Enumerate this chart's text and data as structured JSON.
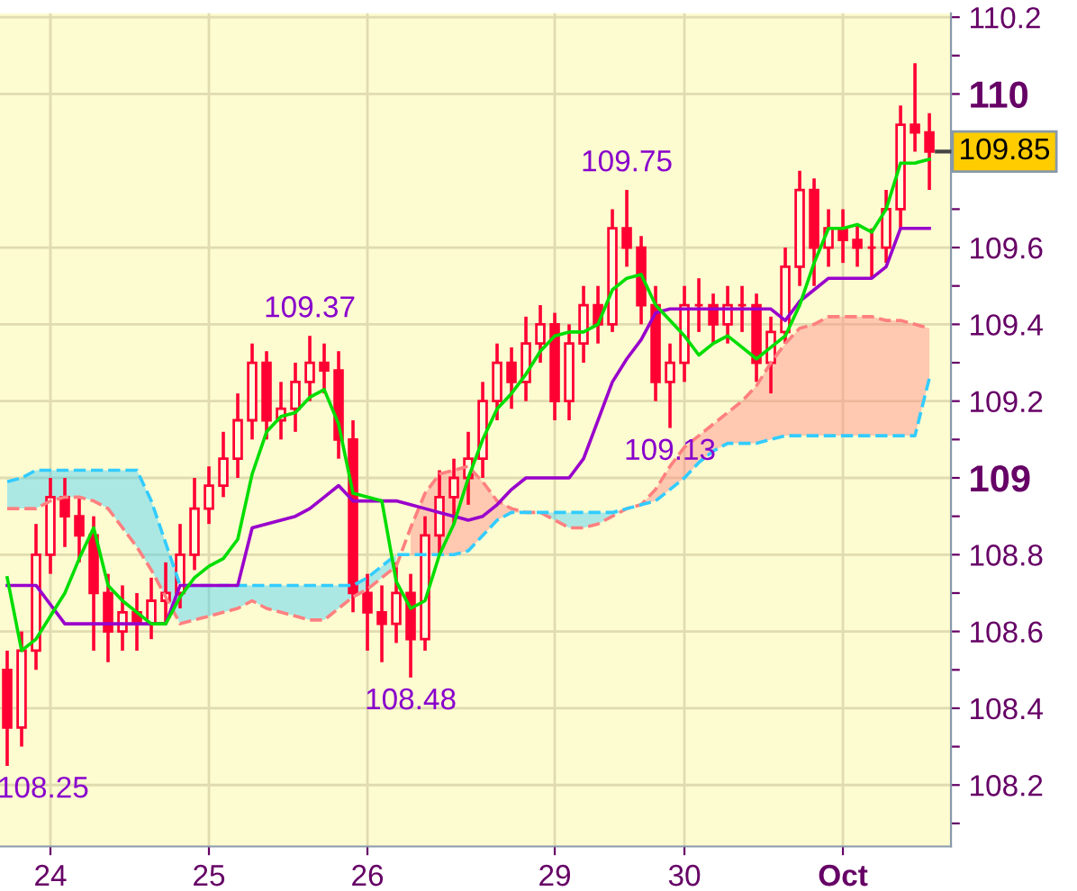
{
  "chart_data": {
    "type": "candlestick",
    "categories": [
      null,
      null,
      null,
      "24",
      null,
      null,
      null,
      null,
      null,
      null,
      null,
      null,
      null,
      null,
      "25",
      null,
      null,
      null,
      null,
      null,
      null,
      null,
      null,
      null,
      null,
      "26",
      null,
      null,
      null,
      null,
      null,
      null,
      null,
      null,
      null,
      null,
      null,
      null,
      "29",
      null,
      null,
      null,
      null,
      null,
      null,
      null,
      null,
      "30",
      null,
      null,
      null,
      null,
      null,
      null,
      null,
      null,
      null,
      null,
      "Oct",
      null,
      null,
      null,
      null,
      null,
      null
    ],
    "ylim": [
      108.04,
      110.21
    ],
    "yticks": [
      {
        "value": 108.1,
        "label": null
      },
      108.2,
      {
        "value": 108.3,
        "label": null
      },
      108.4,
      {
        "value": 108.5,
        "label": null
      },
      108.6,
      {
        "value": 108.7,
        "label": null
      },
      108.8,
      {
        "value": 108.9,
        "label": null
      },
      109,
      {
        "value": 109.1,
        "label": null
      },
      109.2,
      {
        "value": 109.3,
        "label": null
      },
      109.4,
      {
        "value": 109.5,
        "label": null
      },
      109.6,
      {
        "value": 109.7,
        "label": null
      },
      {
        "value": 109.8,
        "label": null
      },
      {
        "value": 109.9,
        "label": null
      },
      110,
      {
        "value": 110.1,
        "label": null
      },
      110.2
    ],
    "grid": true,
    "series": [
      {
        "type": "line",
        "color": "#ff8080",
        "line_style": "dashed",
        "upper": [
          null,
          null,
          null,
          null,
          null,
          null,
          null,
          null,
          null,
          null,
          null,
          null,
          null,
          null,
          null,
          null,
          null,
          null,
          null,
          null,
          null,
          null,
          null,
          null,
          null,
          null,
          null,
          null,
          108.87,
          108.96,
          109.01,
          109.02,
          109.03,
          108.99,
          108.94,
          108.92,
          108.91,
          108.91,
          null,
          null,
          null,
          null,
          null,
          108.92,
          108.93,
          108.97,
          109.03,
          109.08,
          109.11,
          109.14,
          109.17,
          109.2,
          109.24,
          109.3,
          109.35,
          109.39,
          109.4,
          109.42,
          109.42,
          109.42,
          109.42,
          109.41,
          109.41,
          109.4,
          109.39
        ],
        "lower": [
          null,
          null,
          null,
          null,
          null,
          null,
          null,
          null,
          null,
          null,
          null,
          null,
          null,
          null,
          null,
          null,
          null,
          null,
          null,
          null,
          null,
          null,
          null,
          null,
          null,
          null,
          null,
          null,
          108.8,
          108.8,
          108.8,
          108.8,
          108.81,
          108.85,
          108.89,
          108.91,
          108.91,
          108.91,
          null,
          null,
          null,
          null,
          null,
          108.92,
          108.93,
          108.94,
          108.97,
          109.0,
          109.04,
          109.07,
          109.09,
          109.09,
          109.09,
          109.1,
          109.11,
          109.11,
          109.11,
          109.11,
          109.11,
          109.11,
          109.11,
          109.11,
          109.11,
          109.11,
          109.26
        ],
        "values": [
          108.92,
          108.92,
          108.92,
          108.94,
          108.95,
          108.95,
          108.94,
          108.92,
          108.87,
          108.82,
          108.76,
          108.69,
          108.62,
          108.63,
          108.64,
          108.65,
          108.66,
          108.68,
          108.66,
          108.65,
          108.64,
          108.63,
          108.63,
          108.66,
          108.69,
          108.71,
          108.74,
          108.77,
          108.87,
          108.96,
          109.01,
          109.02,
          109.03,
          108.99,
          108.94,
          108.92,
          108.91,
          108.91,
          108.89,
          108.87,
          108.87,
          108.88,
          108.9,
          108.92,
          108.93,
          108.97,
          109.03,
          109.08,
          109.11,
          109.14,
          109.17,
          109.2,
          109.24,
          109.3,
          109.35,
          109.39,
          109.4,
          109.42,
          109.42,
          109.42,
          109.42,
          109.41,
          109.41,
          109.4,
          109.39
        ]
      },
      {
        "type": "line",
        "color": "#33ccff",
        "line_style": "dashed",
        "upper": [
          108.99,
          109.0,
          109.02,
          109.02,
          109.02,
          109.02,
          109.02,
          109.02,
          109.02,
          109.02,
          108.94,
          108.83,
          108.72,
          108.72,
          108.72,
          108.72,
          108.72,
          108.72,
          108.72,
          108.72,
          108.72,
          108.72,
          108.72,
          108.72,
          108.72,
          108.74,
          108.77,
          108.8,
          null,
          null,
          null,
          null,
          null,
          null,
          null,
          null,
          108.91,
          108.91,
          108.91,
          108.91,
          108.91,
          108.91,
          108.91,
          108.92,
          108.93,
          null,
          null,
          null,
          null,
          null,
          null,
          null,
          null,
          null,
          null,
          null,
          null,
          null,
          null,
          null,
          null,
          null,
          null,
          null,
          null
        ],
        "lower": [
          108.92,
          108.92,
          108.92,
          108.94,
          108.95,
          108.95,
          108.94,
          108.92,
          108.87,
          108.82,
          108.76,
          108.69,
          108.62,
          108.63,
          108.64,
          108.65,
          108.66,
          108.68,
          108.66,
          108.65,
          108.64,
          108.63,
          108.63,
          108.66,
          108.69,
          108.71,
          108.74,
          108.77,
          null,
          null,
          null,
          null,
          null,
          null,
          null,
          null,
          108.91,
          108.91,
          108.89,
          108.87,
          108.87,
          108.88,
          108.9,
          108.92,
          108.93,
          null,
          null,
          null,
          null,
          null,
          null,
          null,
          null,
          null,
          null,
          null,
          null,
          null,
          null,
          null,
          null,
          null,
          null,
          null,
          null
        ],
        "values": [
          108.99,
          109.0,
          109.02,
          109.02,
          109.02,
          109.02,
          109.02,
          109.02,
          109.02,
          109.02,
          108.94,
          108.83,
          108.72,
          108.72,
          108.72,
          108.72,
          108.72,
          108.72,
          108.72,
          108.72,
          108.72,
          108.72,
          108.72,
          108.72,
          108.72,
          108.74,
          108.77,
          108.8,
          108.8,
          108.8,
          108.8,
          108.8,
          108.81,
          108.85,
          108.89,
          108.91,
          108.91,
          108.91,
          108.91,
          108.91,
          108.91,
          108.91,
          108.91,
          108.92,
          108.93,
          108.94,
          108.97,
          109.0,
          109.04,
          109.07,
          109.09,
          109.09,
          109.09,
          109.1,
          109.11,
          109.11,
          109.11,
          109.11,
          109.11,
          109.11,
          109.11,
          109.11,
          109.11,
          109.11,
          109.26
        ]
      },
      {
        "type": "line",
        "color": "#9900cc",
        "line_style": "solid",
        "values": [
          108.72,
          108.72,
          108.72,
          108.67,
          108.62,
          108.62,
          108.62,
          108.62,
          108.62,
          108.62,
          108.62,
          108.62,
          108.72,
          108.72,
          108.72,
          108.72,
          108.72,
          108.87,
          108.88,
          108.89,
          108.9,
          108.92,
          108.95,
          108.98,
          108.94,
          108.94,
          108.94,
          108.94,
          108.93,
          108.92,
          108.91,
          108.9,
          108.89,
          108.9,
          108.93,
          108.97,
          109.0,
          109.0,
          109.0,
          109.0,
          109.05,
          109.15,
          109.25,
          109.31,
          109.36,
          109.43,
          109.44,
          109.44,
          109.44,
          109.44,
          109.44,
          109.44,
          109.44,
          109.44,
          109.41,
          109.46,
          109.49,
          109.52,
          109.52,
          109.52,
          109.52,
          109.55,
          109.65,
          109.65,
          109.65
        ]
      },
      {
        "type": "line",
        "color": "#00dd00",
        "line_style": "solid",
        "values": [
          108.74,
          108.55,
          108.58,
          108.64,
          108.7,
          108.79,
          108.87,
          108.72,
          108.68,
          108.65,
          108.62,
          108.62,
          108.69,
          108.74,
          108.77,
          108.79,
          108.84,
          109.01,
          109.12,
          109.16,
          109.17,
          109.21,
          109.23,
          109.14,
          108.96,
          108.95,
          108.94,
          108.73,
          108.66,
          108.68,
          108.8,
          108.88,
          109.0,
          109.1,
          109.18,
          109.22,
          109.27,
          109.33,
          109.37,
          109.38,
          109.38,
          109.4,
          109.49,
          109.52,
          109.53,
          109.45,
          109.41,
          109.37,
          109.32,
          109.35,
          109.37,
          109.34,
          109.31,
          109.34,
          109.37,
          109.45,
          109.56,
          109.65,
          109.65,
          109.66,
          109.64,
          109.7,
          109.82,
          109.82,
          109.83
        ]
      },
      {
        "color": "#ff0033",
        "ohlc": [
          [
            108.5,
            108.55,
            108.25,
            108.35
          ],
          [
            108.35,
            108.6,
            108.3,
            108.55
          ],
          [
            108.55,
            108.88,
            108.5,
            108.8
          ],
          [
            108.8,
            109.0,
            108.75,
            108.95
          ],
          [
            108.95,
            109.0,
            108.82,
            108.9
          ],
          [
            108.9,
            108.95,
            108.78,
            108.85
          ],
          [
            108.85,
            108.9,
            108.55,
            108.7
          ],
          [
            108.7,
            108.75,
            108.52,
            108.6
          ],
          [
            108.6,
            108.72,
            108.55,
            108.65
          ],
          [
            108.65,
            108.7,
            108.55,
            108.62
          ],
          [
            108.62,
            108.74,
            108.58,
            108.68
          ],
          [
            108.68,
            108.78,
            108.62,
            108.7
          ],
          [
            108.7,
            108.88,
            108.66,
            108.8
          ],
          [
            108.8,
            109.0,
            108.76,
            108.92
          ],
          [
            108.92,
            109.03,
            108.88,
            108.98
          ],
          [
            108.98,
            109.12,
            108.95,
            109.05
          ],
          [
            109.05,
            109.22,
            109.0,
            109.15
          ],
          [
            109.15,
            109.35,
            109.1,
            109.3
          ],
          [
            109.3,
            109.33,
            109.1,
            109.15
          ],
          [
            109.15,
            109.25,
            109.1,
            109.18
          ],
          [
            109.18,
            109.3,
            109.12,
            109.25
          ],
          [
            109.25,
            109.37,
            109.2,
            109.3
          ],
          [
            109.3,
            109.35,
            109.22,
            109.28
          ],
          [
            109.28,
            109.33,
            109.05,
            109.1
          ],
          [
            109.1,
            109.15,
            108.65,
            108.7
          ],
          [
            108.7,
            108.75,
            108.55,
            108.65
          ],
          [
            108.65,
            108.72,
            108.52,
            108.62
          ],
          [
            108.62,
            108.78,
            108.57,
            108.7
          ],
          [
            108.7,
            108.75,
            108.48,
            108.58
          ],
          [
            108.58,
            108.9,
            108.55,
            108.85
          ],
          [
            108.85,
            109.02,
            108.8,
            108.95
          ],
          [
            108.95,
            109.05,
            108.88,
            109.0
          ],
          [
            109.0,
            109.12,
            108.93,
            109.05
          ],
          [
            109.05,
            109.25,
            109.0,
            109.2
          ],
          [
            109.2,
            109.35,
            109.15,
            109.3
          ],
          [
            109.3,
            109.34,
            109.18,
            109.25
          ],
          [
            109.25,
            109.42,
            109.2,
            109.35
          ],
          [
            109.35,
            109.45,
            109.3,
            109.4
          ],
          [
            109.4,
            109.43,
            109.15,
            109.2
          ],
          [
            109.2,
            109.4,
            109.15,
            109.35
          ],
          [
            109.35,
            109.5,
            109.3,
            109.45
          ],
          [
            109.45,
            109.5,
            109.35,
            109.4
          ],
          [
            109.4,
            109.7,
            109.38,
            109.65
          ],
          [
            109.65,
            109.75,
            109.55,
            109.6
          ],
          [
            109.6,
            109.63,
            109.4,
            109.45
          ],
          [
            109.45,
            109.5,
            109.2,
            109.25
          ],
          [
            109.25,
            109.35,
            109.13,
            109.3
          ],
          [
            109.3,
            109.5,
            109.25,
            109.45
          ],
          [
            109.45,
            109.52,
            109.38,
            109.45
          ],
          [
            109.45,
            109.48,
            109.35,
            109.4
          ],
          [
            109.4,
            109.5,
            109.35,
            109.45
          ],
          [
            109.45,
            109.5,
            109.38,
            109.45
          ],
          [
            109.45,
            109.48,
            109.25,
            109.3
          ],
          [
            109.3,
            109.42,
            109.22,
            109.38
          ],
          [
            109.38,
            109.6,
            109.35,
            109.55
          ],
          [
            109.55,
            109.8,
            109.5,
            109.75
          ],
          [
            109.75,
            109.78,
            109.5,
            109.6
          ],
          [
            109.6,
            109.7,
            109.55,
            109.65
          ],
          [
            109.65,
            109.7,
            109.56,
            109.62
          ],
          [
            109.62,
            109.66,
            109.55,
            109.6
          ],
          [
            109.6,
            109.65,
            109.52,
            109.6
          ],
          [
            109.6,
            109.75,
            109.56,
            109.7
          ],
          [
            109.7,
            109.97,
            109.65,
            109.92
          ],
          [
            109.92,
            110.08,
            109.85,
            109.9
          ],
          [
            109.9,
            109.95,
            109.75,
            109.85
          ]
        ]
      }
    ],
    "ref_lines": [
      {
        "axis": "y",
        "value": 109.85,
        "label": "109.85",
        "color": "#444444"
      }
    ],
    "annotations": [
      "108.25",
      {
        "text": "109.37",
        "y": 109.37
      },
      {
        "text": "108.48",
        "y": 108.48
      },
      {
        "text": "109.75",
        "y": 109.75
      },
      {
        "text": "109.13",
        "y": 109.13
      }
    ]
  }
}
